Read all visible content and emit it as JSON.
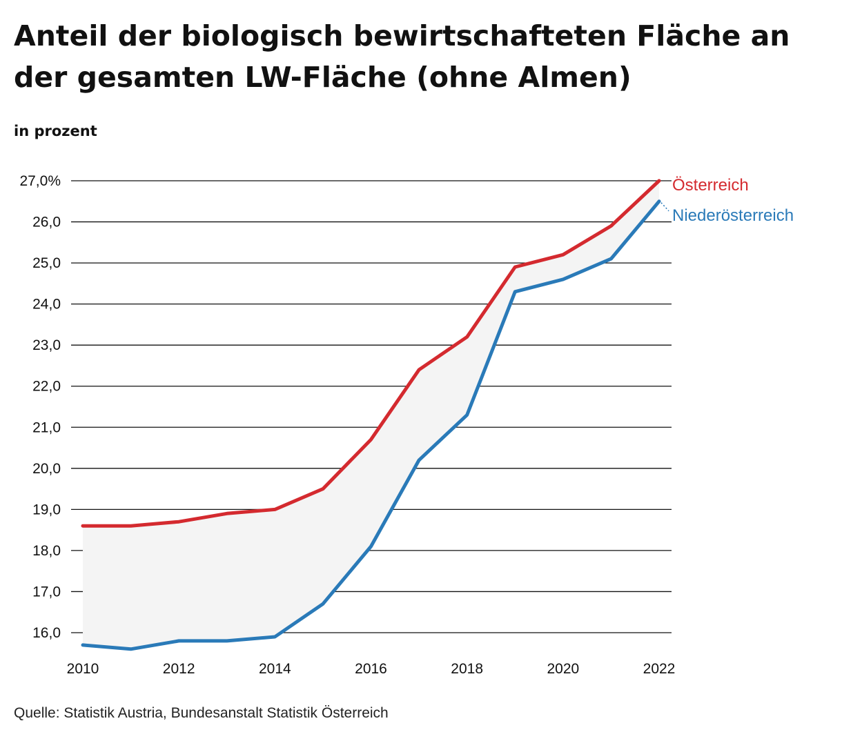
{
  "chart_data": {
    "type": "line",
    "title": "Anteil der biologisch bewirtschafteten Fläche an der gesamten LW-Fläche (ohne Almen)",
    "subtitle": "in prozent",
    "source": "Quelle: Statistik Austria, Bundesanstalt Statistik Österreich",
    "x": [
      2010,
      2011,
      2012,
      2013,
      2014,
      2015,
      2016,
      2017,
      2018,
      2019,
      2020,
      2021,
      2022
    ],
    "x_tick_labels": [
      "2010",
      "2012",
      "2014",
      "2016",
      "2018",
      "2020",
      "2022"
    ],
    "y_tick_values": [
      16,
      17,
      18,
      19,
      20,
      21,
      22,
      23,
      24,
      25,
      26,
      27
    ],
    "y_tick_labels": [
      "16,0",
      "17,0",
      "18,0",
      "19,0",
      "20,0",
      "21,0",
      "22,0",
      "23,0",
      "24,0",
      "25,0",
      "26,0",
      "27,0%"
    ],
    "ylim": [
      15.6,
      27.0
    ],
    "grid": true,
    "series": [
      {
        "name": "Österreich",
        "color": "#d42a2f",
        "values": [
          18.6,
          18.6,
          18.7,
          18.9,
          19.0,
          19.5,
          20.7,
          22.4,
          23.2,
          24.9,
          25.2,
          25.9,
          27.0
        ]
      },
      {
        "name": "Niederösterreich",
        "color": "#2a7ab8",
        "values": [
          15.7,
          15.6,
          15.8,
          15.8,
          15.9,
          16.7,
          18.1,
          20.2,
          21.3,
          24.3,
          24.6,
          25.1,
          26.5
        ]
      }
    ],
    "band_fill": "#f4f4f4"
  }
}
